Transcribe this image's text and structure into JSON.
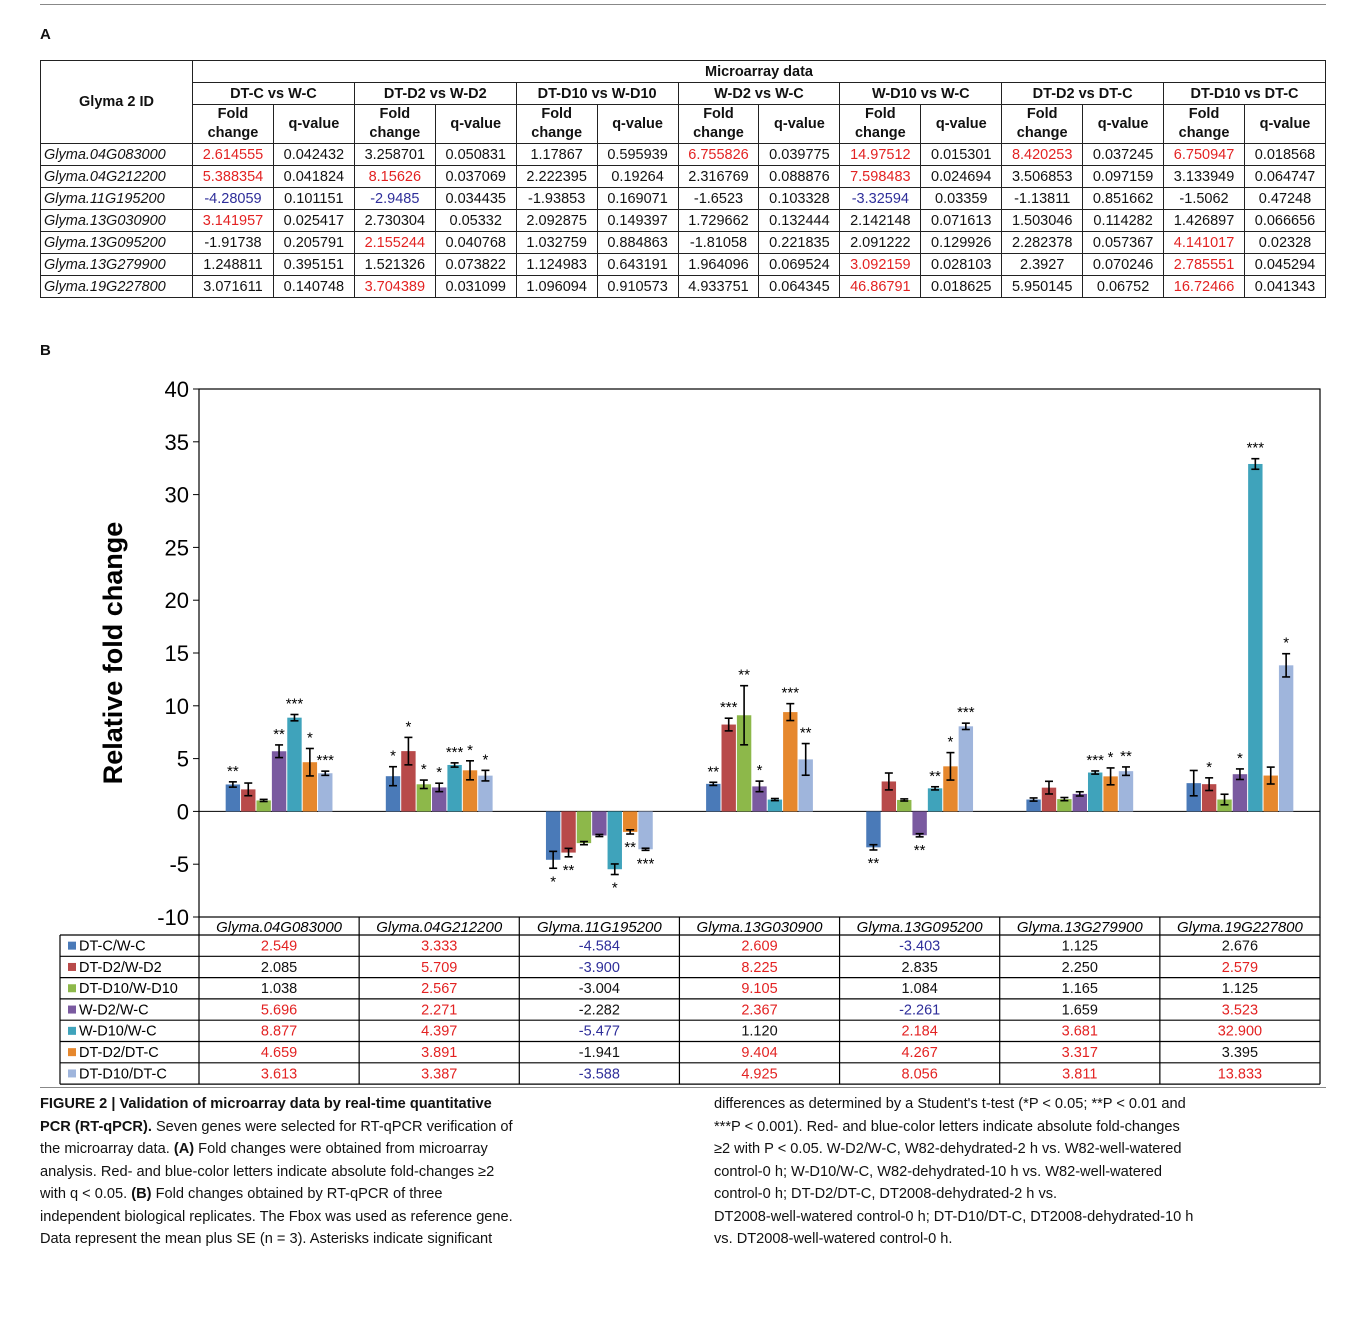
{
  "panel_a_label": "A",
  "panel_b_label": "B",
  "table_a": {
    "gene_header": "Glyma 2 ID",
    "group_header": "Microarray data",
    "comparisons": [
      "DT-C vs W-C",
      "DT-D2 vs W-D2",
      "DT-D10 vs W-D10",
      "W-D2 vs W-C",
      "W-D10 vs  W-C",
      "DT-D2 vs DT-C",
      "DT-D10 vs DT-C"
    ],
    "fold_label": [
      "Fold",
      "change"
    ],
    "q_label": "q-value",
    "rows": [
      {
        "gene": "Glyma.04G083000",
        "cells": [
          {
            "fc": "2.614555",
            "q": "0.042432",
            "c": "red"
          },
          {
            "fc": "3.258701",
            "q": "0.050831",
            "c": ""
          },
          {
            "fc": "1.17867",
            "q": "0.595939",
            "c": ""
          },
          {
            "fc": "6.755826",
            "q": "0.039775",
            "c": "red"
          },
          {
            "fc": "14.97512",
            "q": "0.015301",
            "c": "red"
          },
          {
            "fc": "8.420253",
            "q": "0.037245",
            "c": "red"
          },
          {
            "fc": "6.750947",
            "q": "0.018568",
            "c": "red"
          }
        ]
      },
      {
        "gene": "Glyma.04G212200",
        "cells": [
          {
            "fc": "5.388354",
            "q": "0.041824",
            "c": "red"
          },
          {
            "fc": "8.15626",
            "q": "0.037069",
            "c": "red"
          },
          {
            "fc": "2.222395",
            "q": "0.19264",
            "c": ""
          },
          {
            "fc": "2.316769",
            "q": "0.088876",
            "c": ""
          },
          {
            "fc": "7.598483",
            "q": "0.024694",
            "c": "red"
          },
          {
            "fc": "3.506853",
            "q": "0.097159",
            "c": ""
          },
          {
            "fc": "3.133949",
            "q": "0.064747",
            "c": ""
          }
        ]
      },
      {
        "gene": "Glyma.11G195200",
        "cells": [
          {
            "fc": "-4.28059",
            "q": "0.101151",
            "c": "blue"
          },
          {
            "fc": "-2.9485",
            "q": "0.034435",
            "c": "blue"
          },
          {
            "fc": "-1.93853",
            "q": "0.169071",
            "c": ""
          },
          {
            "fc": "-1.6523",
            "q": "0.103328",
            "c": ""
          },
          {
            "fc": "-3.32594",
            "q": "0.03359",
            "c": "blue"
          },
          {
            "fc": "-1.13811",
            "q": "0.851662",
            "c": ""
          },
          {
            "fc": "-1.5062",
            "q": "0.47248",
            "c": ""
          }
        ]
      },
      {
        "gene": "Glyma.13G030900",
        "cells": [
          {
            "fc": "3.141957",
            "q": "0.025417",
            "c": "red"
          },
          {
            "fc": "2.730304",
            "q": "0.05332",
            "c": ""
          },
          {
            "fc": "2.092875",
            "q": "0.149397",
            "c": ""
          },
          {
            "fc": "1.729662",
            "q": "0.132444",
            "c": ""
          },
          {
            "fc": "2.142148",
            "q": "0.071613",
            "c": ""
          },
          {
            "fc": "1.503046",
            "q": "0.114282",
            "c": ""
          },
          {
            "fc": "1.426897",
            "q": "0.066656",
            "c": ""
          }
        ]
      },
      {
        "gene": "Glyma.13G095200",
        "cells": [
          {
            "fc": "-1.91738",
            "q": "0.205791",
            "c": ""
          },
          {
            "fc": "2.155244",
            "q": "0.040768",
            "c": "red"
          },
          {
            "fc": "1.032759",
            "q": "0.884863",
            "c": ""
          },
          {
            "fc": "-1.81058",
            "q": "0.221835",
            "c": ""
          },
          {
            "fc": "2.091222",
            "q": "0.129926",
            "c": ""
          },
          {
            "fc": "2.282378",
            "q": "0.057367",
            "c": ""
          },
          {
            "fc": "4.141017",
            "q": "0.02328",
            "c": "red"
          }
        ]
      },
      {
        "gene": "Glyma.13G279900",
        "cells": [
          {
            "fc": "1.248811",
            "q": "0.395151",
            "c": ""
          },
          {
            "fc": "1.521326",
            "q": "0.073822",
            "c": ""
          },
          {
            "fc": "1.124983",
            "q": "0.643191",
            "c": ""
          },
          {
            "fc": "1.964096",
            "q": "0.069524",
            "c": ""
          },
          {
            "fc": "3.092159",
            "q": "0.028103",
            "c": "red"
          },
          {
            "fc": "2.3927",
            "q": "0.070246",
            "c": ""
          },
          {
            "fc": "2.785551",
            "q": "0.045294",
            "c": "red"
          }
        ]
      },
      {
        "gene": "Glyma.19G227800",
        "cells": [
          {
            "fc": "3.071611",
            "q": "0.140748",
            "c": ""
          },
          {
            "fc": "3.704389",
            "q": "0.031099",
            "c": "red"
          },
          {
            "fc": "1.096094",
            "q": "0.910573",
            "c": ""
          },
          {
            "fc": "4.933751",
            "q": "0.064345",
            "c": ""
          },
          {
            "fc": "46.86791",
            "q": "0.018625",
            "c": "red"
          },
          {
            "fc": "5.950145",
            "q": "0.06752",
            "c": ""
          },
          {
            "fc": "16.72466",
            "q": "0.041343",
            "c": "red"
          }
        ]
      }
    ]
  },
  "colors": {
    "red": "#e32222",
    "blue": "#2e2e9a"
  },
  "chart_data": {
    "type": "bar",
    "ylabel": "Relative fold change",
    "ylim": [
      -10,
      40
    ],
    "yticks": [
      40,
      35,
      30,
      25,
      20,
      15,
      10,
      5,
      0,
      -5,
      -10
    ],
    "grid": false,
    "legend": "table below chart",
    "categories": [
      "Glyma.04G083000",
      "Glyma.04G212200",
      "Glyma.11G195200",
      "Glyma.13G030900",
      "Glyma.13G095200",
      "Glyma.13G279900",
      "Glyma.19G227800"
    ],
    "series": [
      {
        "name": "DT-C/W-C",
        "color": "#4a7ab8",
        "values": [
          2.549,
          3.333,
          -4.584,
          2.609,
          -3.403,
          1.125,
          2.676
        ],
        "labels": [
          "2.549",
          "3.333",
          "-4.584",
          "2.609",
          "-3.403",
          "1.125",
          "2.676"
        ],
        "label_colors": [
          "red",
          "red",
          "blue",
          "red",
          "blue",
          "",
          ""
        ],
        "errors": [
          0.25,
          0.9,
          0.8,
          0.15,
          0.25,
          0.15,
          1.2
        ],
        "stars": [
          "**",
          "*",
          "*",
          "**",
          "**",
          "",
          ""
        ]
      },
      {
        "name": "DT-D2/W-D2",
        "color": "#b84a4a",
        "values": [
          2.085,
          5.709,
          -3.9,
          8.225,
          2.835,
          2.25,
          2.579
        ],
        "labels": [
          "2.085",
          "5.709",
          "-3.900",
          "8.225",
          "2.835",
          "2.250",
          "2.579"
        ],
        "label_colors": [
          "",
          "red",
          "blue",
          "red",
          "",
          "",
          "red"
        ],
        "errors": [
          0.6,
          1.3,
          0.4,
          0.6,
          0.8,
          0.6,
          0.6
        ],
        "stars": [
          "",
          "*",
          "**",
          "***",
          "",
          "",
          "*"
        ]
      },
      {
        "name": "DT-D10/W-D10",
        "color": "#8db84a",
        "values": [
          1.038,
          2.567,
          -3.004,
          9.105,
          1.084,
          1.165,
          1.125
        ],
        "labels": [
          "1.038",
          "2.567",
          "-3.004",
          "9.105",
          "1.084",
          "1.165",
          "1.125"
        ],
        "label_colors": [
          "",
          "red",
          "",
          "red",
          "",
          "",
          ""
        ],
        "errors": [
          0.1,
          0.4,
          0.15,
          2.8,
          0.1,
          0.15,
          0.5
        ],
        "stars": [
          "",
          "*",
          "",
          "**",
          "",
          "",
          ""
        ]
      },
      {
        "name": "W-D2/W-C",
        "color": "#7a5aa0",
        "values": [
          5.696,
          2.271,
          -2.282,
          2.367,
          -2.261,
          1.659,
          3.523
        ],
        "labels": [
          "5.696",
          "2.271",
          "-2.282",
          "2.367",
          "-2.261",
          "1.659",
          "3.523"
        ],
        "label_colors": [
          "red",
          "red",
          "",
          "red",
          "blue",
          "",
          "red"
        ],
        "errors": [
          0.6,
          0.4,
          0.1,
          0.5,
          0.15,
          0.2,
          0.5
        ],
        "stars": [
          "**",
          "*",
          "",
          "*",
          "**",
          "",
          "*"
        ]
      },
      {
        "name": "W-D10/W-C",
        "color": "#3fa3bb",
        "values": [
          8.877,
          4.397,
          -5.477,
          1.12,
          2.184,
          3.681,
          32.9
        ],
        "labels": [
          "8.877",
          "4.397",
          "-5.477",
          "1.120",
          "2.184",
          "3.681",
          "32.900"
        ],
        "label_colors": [
          "red",
          "red",
          "blue",
          "",
          "red",
          "red",
          "red"
        ],
        "errors": [
          0.3,
          0.2,
          0.5,
          0.1,
          0.15,
          0.15,
          0.5
        ],
        "stars": [
          "***",
          "***",
          "*",
          "",
          "**",
          "***",
          "***"
        ]
      },
      {
        "name": "DT-D2/DT-C",
        "color": "#e6882e",
        "values": [
          4.659,
          3.891,
          -1.941,
          9.404,
          4.267,
          3.317,
          3.395
        ],
        "labels": [
          "4.659",
          "3.891",
          "-1.941",
          "9.404",
          "4.267",
          "3.317",
          "3.395"
        ],
        "label_colors": [
          "red",
          "red",
          "",
          "red",
          "red",
          "red",
          ""
        ],
        "errors": [
          1.3,
          0.9,
          0.2,
          0.8,
          1.3,
          0.8,
          0.8
        ],
        "stars": [
          "*",
          "*",
          "**",
          "***",
          "*",
          "*",
          ""
        ]
      },
      {
        "name": "DT-D10/DT-C",
        "color": "#9fb5dc",
        "values": [
          3.613,
          3.387,
          -3.588,
          4.925,
          8.056,
          3.811,
          13.833
        ],
        "labels": [
          "3.613",
          "3.387",
          "-3.588",
          "4.925",
          "8.056",
          "3.811",
          "13.833"
        ],
        "label_colors": [
          "red",
          "red",
          "blue",
          "red",
          "red",
          "red",
          "red"
        ],
        "errors": [
          0.2,
          0.5,
          0.1,
          1.5,
          0.3,
          0.4,
          1.1
        ],
        "stars": [
          "***",
          "*",
          "***",
          "**",
          "***",
          "**",
          "*"
        ]
      }
    ]
  },
  "caption": {
    "left": [
      {
        "t": "FIGURE 2 | Validation of microarray data by real-time quantitative",
        "b": true
      },
      {
        "t": "PCR (RT-qPCR).",
        "b": true,
        "rest": " Seven genes were selected for RT-qPCR verification of"
      },
      {
        "t": "the microarray data. ",
        "rest_b": "(A)",
        "rest": " Fold changes were obtained from microarray"
      },
      {
        "t": "analysis. Red- and blue-color letters indicate absolute fold-changes ≥2"
      },
      {
        "t": "with q < 0.05. ",
        "rest_b": "(B)",
        "rest": " Fold changes obtained by RT-qPCR of three"
      },
      {
        "t": "independent biological replicates. The Fbox was used as reference gene."
      },
      {
        "t": "Data represent the mean plus SE (n = 3). Asterisks indicate significant"
      }
    ],
    "right": [
      "differences as determined by a Student's t-test (*P < 0.05; **P < 0.01 and",
      "***P < 0.001). Red- and blue-color letters indicate absolute fold-changes",
      "≥2 with P < 0.05. W-D2/W-C, W82-dehydrated-2 h vs. W82-well-watered",
      "control-0 h; W-D10/W-C, W82-dehydrated-10 h vs. W82-well-watered",
      "control-0 h; DT-D2/DT-C, DT2008-dehydrated-2 h vs.",
      "DT2008-well-watered control-0 h; DT-D10/DT-C, DT2008-dehydrated-10 h",
      "vs. DT2008-well-watered control-0 h."
    ]
  }
}
